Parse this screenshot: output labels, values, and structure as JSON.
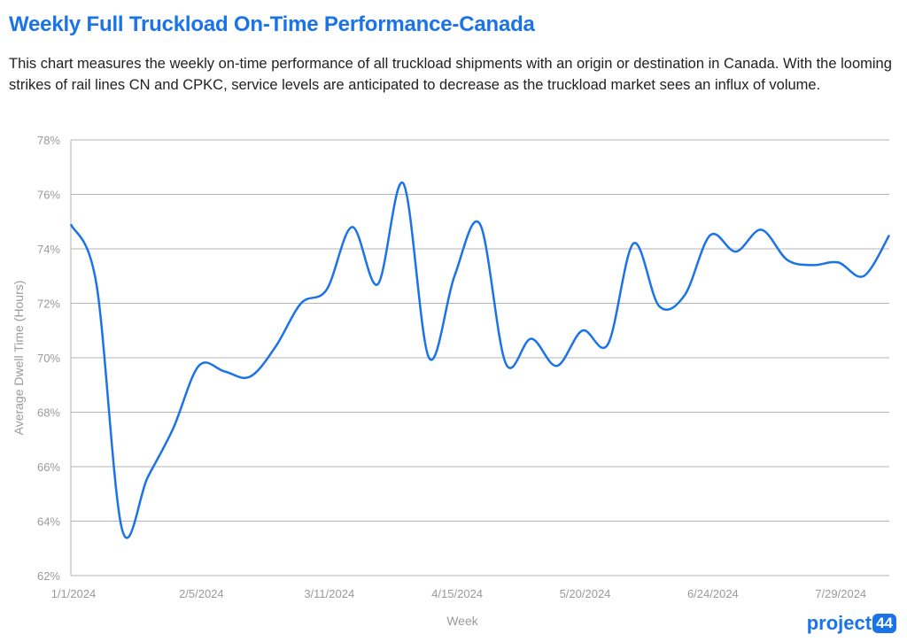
{
  "header": {
    "title": "Weekly Full Truckload On-Time Performance-Canada",
    "description": "This chart measures the weekly on-time performance of all truckload shipments with an origin or destination in Canada. With the looming strikes of rail lines CN and CPKC, service levels are anticipated to decrease as the truckload market sees an influx of volume."
  },
  "logo": {
    "text": "project",
    "badge": "44",
    "color": "#1a73e8"
  },
  "chart_data": {
    "type": "line",
    "title": "Weekly Full Truckload On-Time Performance-Canada",
    "xlabel": "Week",
    "ylabel": "Average Dwell Time (Hours)",
    "ylim": [
      62,
      78
    ],
    "yticks": [
      62,
      64,
      66,
      68,
      70,
      72,
      74,
      76,
      78
    ],
    "ytick_labels": [
      "62%",
      "64%",
      "66%",
      "68%",
      "70%",
      "72%",
      "74%",
      "76%",
      "78%"
    ],
    "xtick_labels": [
      "1/1/2024",
      "2/5/2024",
      "3/11/2024",
      "4/15/2024",
      "5/20/2024",
      "6/24/2024",
      "7/29/2024"
    ],
    "grid": true,
    "line_color": "#1a73e8",
    "x": [
      "1/1/2024",
      "1/8/2024",
      "1/15/2024",
      "1/22/2024",
      "1/29/2024",
      "2/5/2024",
      "2/12/2024",
      "2/19/2024",
      "2/26/2024",
      "3/4/2024",
      "3/11/2024",
      "3/18/2024",
      "3/25/2024",
      "4/1/2024",
      "4/8/2024",
      "4/15/2024",
      "4/22/2024",
      "4/29/2024",
      "5/6/2024",
      "5/13/2024",
      "5/20/2024",
      "5/27/2024",
      "6/3/2024",
      "6/10/2024",
      "6/17/2024",
      "6/24/2024",
      "7/1/2024",
      "7/8/2024",
      "7/15/2024",
      "7/22/2024",
      "7/29/2024",
      "8/5/2024",
      "8/12/2024"
    ],
    "series": [
      {
        "values": [
          74.9,
          72.7,
          63.7,
          65.6,
          67.4,
          69.7,
          69.5,
          69.3,
          70.4,
          72.0,
          72.5,
          74.8,
          72.7,
          76.4,
          70.0,
          73.0,
          74.9,
          69.8,
          70.7,
          69.7,
          71.0,
          70.5,
          74.2,
          71.9,
          72.3,
          74.5,
          73.9,
          74.7,
          73.6,
          73.4,
          73.5,
          73.0,
          74.5
        ]
      }
    ],
    "x_last_label_offset": 0
  }
}
